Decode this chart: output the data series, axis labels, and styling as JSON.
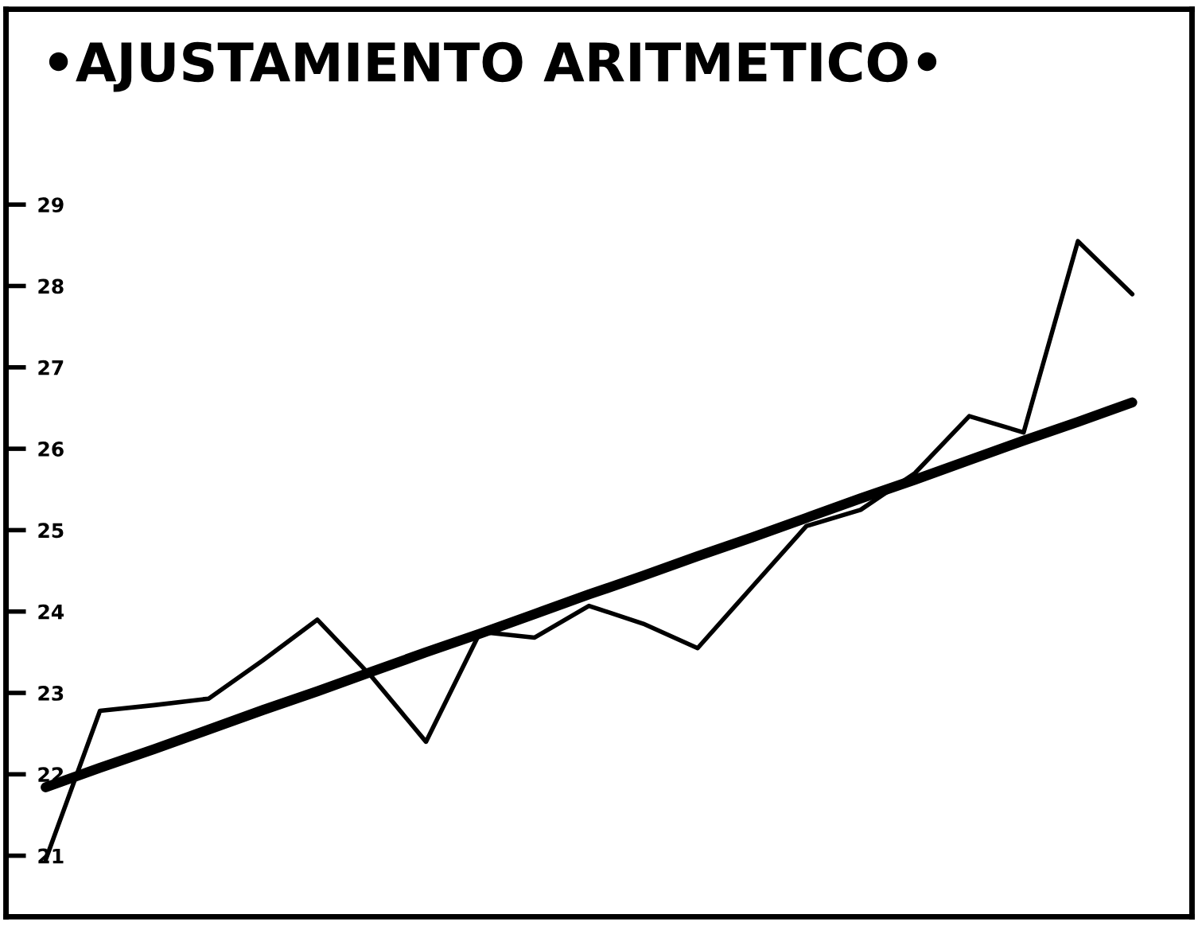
{
  "chart_data": {
    "type": "line",
    "title": "•AJUSTAMIENTO ARITMETICO•",
    "categories": [
      null,
      null,
      null,
      null,
      null,
      null,
      null,
      null,
      null,
      null,
      null,
      null,
      null,
      null,
      null,
      null,
      null,
      null,
      null,
      null,
      null
    ],
    "series": [
      {
        "color": "#000000",
        "values": [
          20.95,
          22.78,
          22.85,
          22.93,
          23.4,
          23.9,
          23.2,
          22.4,
          23.75,
          23.68,
          24.07,
          23.85,
          23.55,
          24.3,
          25.05,
          25.25,
          25.7,
          26.4,
          26.2,
          28.55,
          27.9
        ]
      },
      {
        "color": "#000000",
        "values": [
          21.84,
          22.08,
          22.31,
          22.55,
          22.79,
          23.02,
          23.26,
          23.5,
          23.73,
          23.97,
          24.21,
          24.44,
          24.68,
          24.91,
          25.15,
          25.39,
          25.62,
          25.86,
          26.1,
          26.33,
          26.57
        ]
      }
    ],
    "ylim": [
      20.25,
      31.4
    ],
    "yticks": [
      21,
      22,
      23,
      24,
      25,
      26,
      27,
      28,
      29
    ],
    "tick_labels": "y",
    "grid": false,
    "legend": false,
    "marker": "none",
    "line_style": "solid"
  }
}
